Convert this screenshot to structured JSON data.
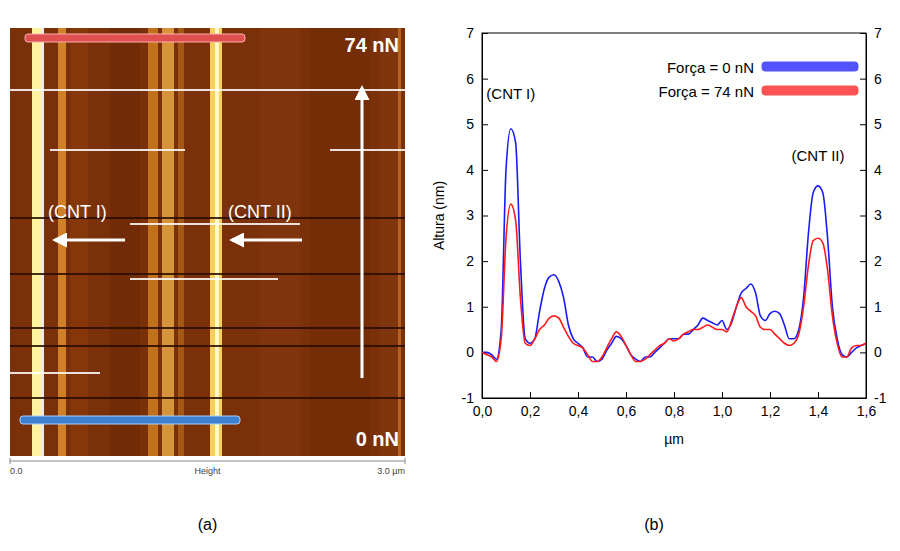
{
  "chart_data": {
    "type": "line",
    "x_label": "µm",
    "y_label": "Altura (nm)",
    "xlim": [
      0,
      1.6
    ],
    "xticks": [
      {
        "value": 0,
        "label": "0,0"
      },
      {
        "value": 0.2,
        "label": "0,2"
      },
      {
        "value": 0.4,
        "label": "0,4"
      },
      {
        "value": 0.6,
        "label": "0,6"
      },
      {
        "value": 0.8,
        "label": "0,8"
      },
      {
        "value": 1.0,
        "label": "1,0"
      },
      {
        "value": 1.2,
        "label": "1,2"
      },
      {
        "value": 1.4,
        "label": "1,4"
      },
      {
        "value": 1.6,
        "label": "1,6"
      }
    ],
    "ylim": [
      -1,
      7
    ],
    "yticks": [
      -1,
      0,
      1,
      2,
      3,
      4,
      5,
      6,
      7
    ],
    "y2lim": [
      -1,
      7
    ],
    "y2ticks": [
      -1,
      0,
      1,
      2,
      3,
      4,
      5,
      6,
      7
    ],
    "grid": false,
    "legend": "upper right",
    "x": [
      0,
      0.02,
      0.04,
      0.06,
      0.08,
      0.1,
      0.12,
      0.14,
      0.16,
      0.18,
      0.2,
      0.22,
      0.24,
      0.26,
      0.28,
      0.3,
      0.32,
      0.34,
      0.36,
      0.38,
      0.4,
      0.42,
      0.44,
      0.46,
      0.48,
      0.5,
      0.52,
      0.54,
      0.56,
      0.58,
      0.6,
      0.62,
      0.64,
      0.66,
      0.68,
      0.7,
      0.72,
      0.74,
      0.76,
      0.78,
      0.8,
      0.82,
      0.84,
      0.86,
      0.88,
      0.9,
      0.92,
      0.94,
      0.96,
      0.98,
      1,
      1.02,
      1.04,
      1.06,
      1.08,
      1.1,
      1.12,
      1.14,
      1.16,
      1.18,
      1.2,
      1.22,
      1.24,
      1.26,
      1.28,
      1.3,
      1.32,
      1.34,
      1.36,
      1.38,
      1.4,
      1.42,
      1.44,
      1.46,
      1.48,
      1.5,
      1.52,
      1.54,
      1.56,
      1.58,
      1.6
    ],
    "series": [
      {
        "name": "Força = 0 nN",
        "color": "#1a1aff",
        "values": [
          0,
          0,
          -0.05,
          -0.15,
          0.5,
          4.0,
          4.9,
          4.6,
          2.0,
          0.3,
          0.2,
          0.3,
          0.9,
          1.4,
          1.65,
          1.7,
          1.55,
          1.2,
          0.6,
          0.3,
          0.2,
          0.1,
          -0.1,
          -0.1,
          -0.2,
          -0.15,
          0.05,
          0.2,
          0.35,
          0.3,
          0.15,
          -0.05,
          -0.15,
          -0.2,
          -0.1,
          -0.1,
          0,
          0.1,
          0.2,
          0.3,
          0.3,
          0.3,
          0.4,
          0.4,
          0.5,
          0.6,
          0.75,
          0.7,
          0.65,
          0.6,
          0.7,
          0.5,
          0.65,
          1.0,
          1.3,
          1.4,
          1.5,
          1.3,
          0.8,
          0.7,
          0.85,
          0.9,
          0.85,
          0.6,
          0.3,
          0.3,
          0.5,
          1.2,
          2.6,
          3.5,
          3.65,
          3.5,
          2.5,
          1.0,
          0.3,
          -0.05,
          -0.1,
          0,
          0.1,
          0.15,
          0.2
        ]
      },
      {
        "name": "Força = 74 nN",
        "color": "#ff1a1a",
        "values": [
          0,
          -0.05,
          -0.1,
          -0.2,
          0.3,
          2.5,
          3.25,
          2.9,
          1.2,
          0.2,
          0.15,
          0.3,
          0.5,
          0.6,
          0.75,
          0.8,
          0.75,
          0.55,
          0.35,
          0.2,
          0.15,
          0.1,
          -0.05,
          -0.2,
          -0.2,
          -0.1,
          0.1,
          0.3,
          0.45,
          0.35,
          0.15,
          -0.05,
          -0.2,
          -0.2,
          -0.15,
          -0.05,
          0.05,
          0.15,
          0.2,
          0.3,
          0.25,
          0.3,
          0.4,
          0.45,
          0.5,
          0.5,
          0.55,
          0.6,
          0.55,
          0.5,
          0.5,
          0.45,
          0.7,
          1.0,
          1.2,
          1.0,
          0.9,
          0.8,
          0.55,
          0.5,
          0.5,
          0.4,
          0.3,
          0.2,
          0.15,
          0.2,
          0.4,
          1.0,
          1.9,
          2.45,
          2.5,
          2.4,
          1.8,
          0.8,
          0.2,
          -0.1,
          -0.1,
          0.1,
          0.15,
          0.15,
          0.2
        ]
      }
    ],
    "annotations": [
      {
        "text": "(CNT I)",
        "x": 0.12,
        "y": 5.55
      },
      {
        "text": "(CNT II)",
        "x": 1.4,
        "y": 4.2
      }
    ]
  },
  "afm_image": {
    "labels": {
      "force_top": "74 nN",
      "force_bottom": "0 nN",
      "cnt_1": "(CNT I)",
      "cnt_2": "(CNT II)"
    },
    "scale_bar": {
      "start": "0.0",
      "title": "Height",
      "end": "3.0 µm"
    }
  },
  "panel_labels": [
    "(a)",
    "(b)"
  ]
}
